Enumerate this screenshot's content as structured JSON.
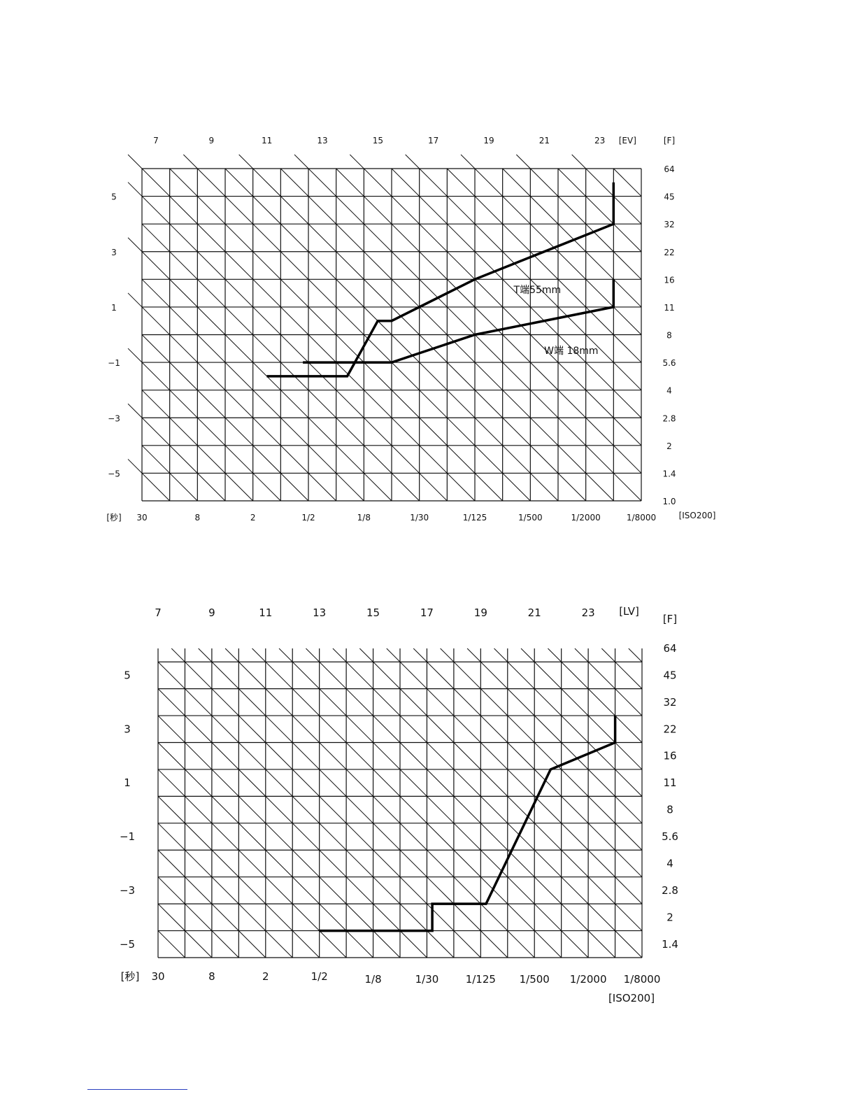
{
  "chart_data": [
    {
      "type": "line",
      "title": "",
      "xlabel": "[秒]",
      "ylabel": "[F]",
      "top_axis_label": "[EV]",
      "iso_label": "[ISO200]",
      "shutter_ticks": [
        "30",
        "8",
        "2",
        "1/2",
        "1/8",
        "1/30",
        "1/125",
        "1/500",
        "1/2000",
        "1/8000"
      ],
      "f_ticks": [
        "64",
        "45",
        "32",
        "22",
        "16",
        "11",
        "8",
        "5.6",
        "4",
        "2.8",
        "2",
        "1.4",
        "1.0"
      ],
      "ev_ticks": [
        "7",
        "9",
        "11",
        "13",
        "15",
        "17",
        "19",
        "21",
        "23"
      ],
      "left_ticks": [
        "5",
        "3",
        "1",
        "−1",
        "−3",
        "−5"
      ],
      "grid": true,
      "series": [
        {
          "name": "T端55mm",
          "points": [
            [
              4.5,
              4.5
            ],
            [
              7.4,
              4.5
            ],
            [
              8.5,
              6.5
            ],
            [
              9.0,
              6.5
            ],
            [
              12.0,
              8.0
            ],
            [
              17.0,
              10.0
            ],
            [
              17.0,
              11.5
            ]
          ],
          "label_at": [
            13.4,
            7.5
          ]
        },
        {
          "name": "W端 18mm",
          "points": [
            [
              5.8,
              5.0
            ],
            [
              8.9,
              5.0
            ],
            [
              9.0,
              5.0
            ],
            [
              12.0,
              6.0
            ],
            [
              17.0,
              7.0
            ],
            [
              17.0,
              8.0
            ]
          ],
          "label_at": [
            14.5,
            5.3
          ]
        }
      ]
    },
    {
      "type": "line",
      "title": "",
      "xlabel": "[秒]",
      "ylabel": "[F]",
      "top_axis_label": "[LV]",
      "iso_label": "[ISO200]",
      "shutter_ticks": [
        "30",
        "8",
        "2",
        "1/2",
        "1/8",
        "1/30",
        "1/125",
        "1/500",
        "1/2000",
        "1/8000"
      ],
      "f_ticks": [
        "64",
        "45",
        "32",
        "22",
        "16",
        "11",
        "8",
        "5.6",
        "4",
        "2.8",
        "2",
        "1.4"
      ],
      "ev_ticks": [
        "7",
        "9",
        "11",
        "13",
        "15",
        "17",
        "19",
        "21",
        "23"
      ],
      "left_ticks": [
        "5",
        "3",
        "1",
        "−1",
        "−3",
        "−5"
      ],
      "grid": true,
      "series": [
        {
          "name": "",
          "points": [
            [
              6.0,
              1.0
            ],
            [
              10.2,
              1.0
            ],
            [
              10.2,
              2.0
            ],
            [
              12.2,
              2.0
            ],
            [
              14.6,
              7.0
            ],
            [
              17.0,
              8.0
            ],
            [
              17.0,
              9.0
            ]
          ]
        }
      ]
    }
  ]
}
